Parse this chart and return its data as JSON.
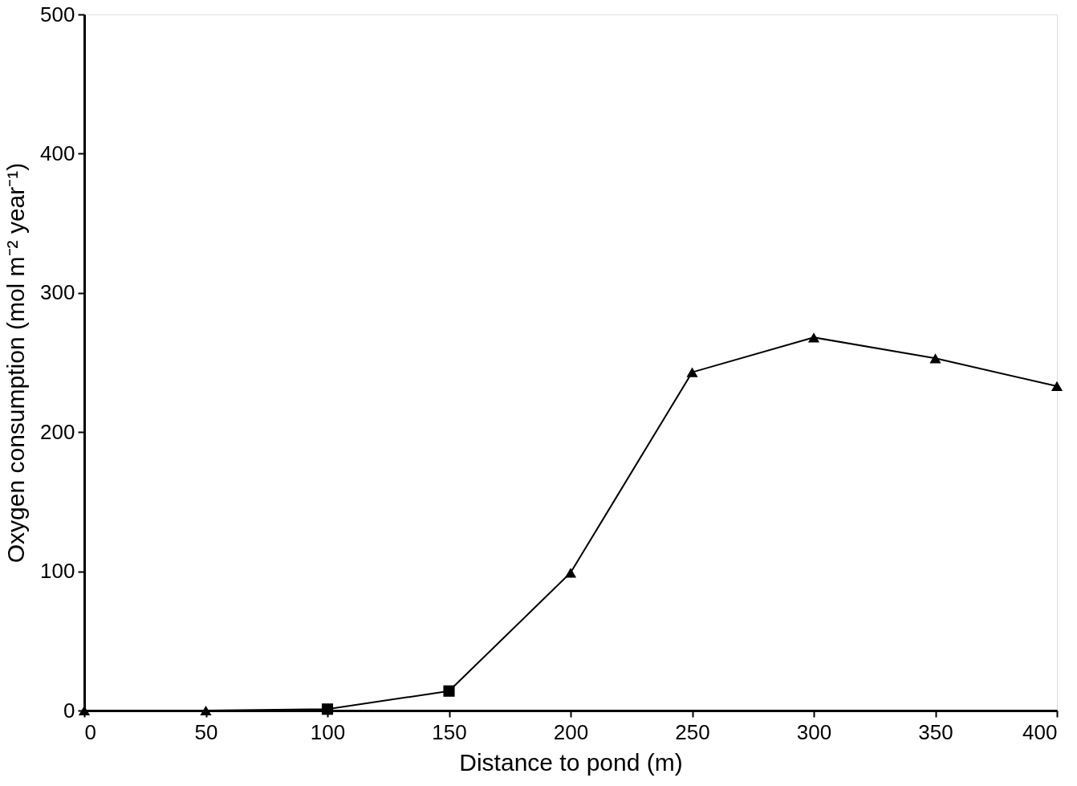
{
  "chart_data": {
    "type": "line",
    "xlabel": "Distance to pond (m)",
    "ylabel": "Oxygen consumption (mol m⁻² year⁻¹)",
    "xlim": [
      0,
      400
    ],
    "xticks": [
      0,
      50,
      100,
      150,
      200,
      250,
      300,
      350,
      400
    ],
    "ylim": [
      0,
      500
    ],
    "yticks": [
      0,
      100,
      200,
      300,
      400,
      500
    ],
    "series": [
      {
        "color": "#000000",
        "marker": "none",
        "line_style": "solid",
        "x": [
          0,
          50,
          100,
          150,
          200,
          250,
          300,
          350,
          400
        ],
        "values": [
          0,
          0,
          1,
          14,
          99,
          243,
          268,
          253,
          233
        ]
      },
      {
        "type": "scatter",
        "color": "#000000",
        "marker": "triangle",
        "x": [
          0,
          50,
          200,
          250,
          300,
          350,
          400
        ],
        "values": [
          0,
          0,
          99,
          243,
          268,
          253,
          233
        ]
      },
      {
        "type": "scatter",
        "color": "#000000",
        "marker": "square",
        "x": [
          100,
          150
        ],
        "values": [
          1,
          14
        ]
      }
    ]
  }
}
